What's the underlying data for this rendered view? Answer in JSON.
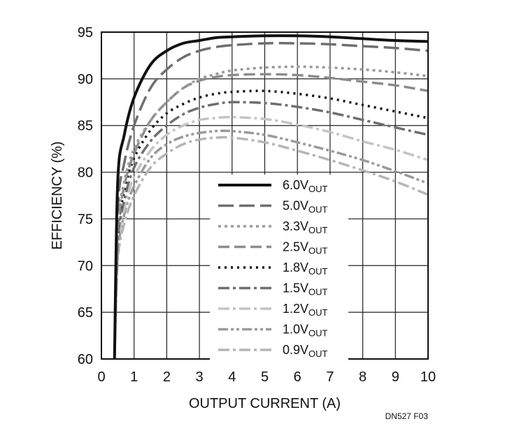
{
  "chart_data": {
    "type": "line",
    "title": "",
    "xlabel": "OUTPUT CURRENT (A)",
    "ylabel": "EFFICIENCY (%)",
    "xlim": [
      0,
      10
    ],
    "ylim": [
      60,
      95
    ],
    "x_ticks": [
      0,
      1,
      2,
      3,
      4,
      5,
      6,
      7,
      8,
      9,
      10
    ],
    "y_ticks": [
      60,
      65,
      70,
      75,
      80,
      85,
      90,
      95
    ],
    "grid": true,
    "legend_position": "center-bottom",
    "series": [
      {
        "name": "6.0V",
        "name_sub": "OUT",
        "color": "#111111",
        "dash": "solid",
        "points": [
          [
            0.4,
            60
          ],
          [
            0.5,
            79
          ],
          [
            0.7,
            84
          ],
          [
            1,
            88
          ],
          [
            1.5,
            91.5
          ],
          [
            2,
            93
          ],
          [
            2.5,
            93.8
          ],
          [
            3,
            94.1
          ],
          [
            3.5,
            94.4
          ],
          [
            4,
            94.5
          ],
          [
            5,
            94.6
          ],
          [
            6,
            94.6
          ],
          [
            7,
            94.5
          ],
          [
            8,
            94.3
          ],
          [
            9,
            94.1
          ],
          [
            10,
            94
          ]
        ]
      },
      {
        "name": "5.0V",
        "name_sub": "OUT",
        "color": "#6f6f6f",
        "dash": "long-dash",
        "points": [
          [
            0.4,
            60
          ],
          [
            0.5,
            76
          ],
          [
            0.7,
            81
          ],
          [
            1,
            85
          ],
          [
            1.5,
            89
          ],
          [
            2,
            91
          ],
          [
            2.5,
            92.3
          ],
          [
            3,
            93
          ],
          [
            3.5,
            93.4
          ],
          [
            4,
            93.6
          ],
          [
            5,
            93.8
          ],
          [
            6,
            93.8
          ],
          [
            7,
            93.7
          ],
          [
            8,
            93.5
          ],
          [
            9,
            93.3
          ],
          [
            10,
            93
          ]
        ]
      },
      {
        "name": "3.3V",
        "name_sub": "OUT",
        "color": "#9a9a9a",
        "dash": "dotted",
        "points": [
          [
            0.4,
            60
          ],
          [
            0.5,
            74
          ],
          [
            0.7,
            79
          ],
          [
            1,
            82.5
          ],
          [
            1.5,
            85.5
          ],
          [
            2,
            87.5
          ],
          [
            2.5,
            89
          ],
          [
            3,
            90
          ],
          [
            3.5,
            90.5
          ],
          [
            4,
            90.9
          ],
          [
            5,
            91.2
          ],
          [
            6,
            91.3
          ],
          [
            7,
            91.2
          ],
          [
            8,
            91
          ],
          [
            9,
            90.7
          ],
          [
            10,
            90.3
          ]
        ]
      },
      {
        "name": "2.5V",
        "name_sub": "OUT",
        "color": "#8c8c8c",
        "dash": "dash",
        "points": [
          [
            0.4,
            60
          ],
          [
            0.5,
            73.5
          ],
          [
            0.7,
            78.5
          ],
          [
            1,
            82
          ],
          [
            1.5,
            85.5
          ],
          [
            2,
            87.5
          ],
          [
            2.5,
            89
          ],
          [
            3,
            89.8
          ],
          [
            3.5,
            90.2
          ],
          [
            4,
            90.4
          ],
          [
            5,
            90.5
          ],
          [
            6,
            90.4
          ],
          [
            7,
            90.1
          ],
          [
            8,
            89.7
          ],
          [
            9,
            89.3
          ],
          [
            10,
            88.7
          ]
        ]
      },
      {
        "name": "1.8V",
        "name_sub": "OUT",
        "color": "#111111",
        "dash": "dot",
        "points": [
          [
            0.4,
            60
          ],
          [
            0.5,
            73
          ],
          [
            0.7,
            78
          ],
          [
            1,
            81.5
          ],
          [
            1.5,
            84.5
          ],
          [
            2,
            86.3
          ],
          [
            2.5,
            87.3
          ],
          [
            3,
            88
          ],
          [
            3.5,
            88.4
          ],
          [
            4,
            88.6
          ],
          [
            5,
            88.7
          ],
          [
            6,
            88.4
          ],
          [
            7,
            87.9
          ],
          [
            8,
            87.2
          ],
          [
            9,
            86.5
          ],
          [
            10,
            85.8
          ]
        ]
      },
      {
        "name": "1.5V",
        "name_sub": "OUT",
        "color": "#6f6f6f",
        "dash": "dash-dot",
        "points": [
          [
            0.4,
            60
          ],
          [
            0.5,
            72.5
          ],
          [
            0.7,
            77
          ],
          [
            1,
            80.5
          ],
          [
            1.5,
            83.3
          ],
          [
            2,
            85
          ],
          [
            2.5,
            86.2
          ],
          [
            3,
            86.9
          ],
          [
            3.5,
            87.3
          ],
          [
            4,
            87.5
          ],
          [
            5,
            87.4
          ],
          [
            6,
            87
          ],
          [
            7,
            86.4
          ],
          [
            8,
            85.6
          ],
          [
            9,
            84.8
          ],
          [
            10,
            84
          ]
        ]
      },
      {
        "name": "1.2V",
        "name_sub": "OUT",
        "color": "#c4c4c4",
        "dash": "dash-dot",
        "points": [
          [
            0.4,
            60
          ],
          [
            0.5,
            71.5
          ],
          [
            0.7,
            76
          ],
          [
            1,
            79.5
          ],
          [
            1.5,
            82.3
          ],
          [
            2,
            84
          ],
          [
            2.5,
            85
          ],
          [
            3,
            85.6
          ],
          [
            3.5,
            85.8
          ],
          [
            4,
            85.9
          ],
          [
            5,
            85.7
          ],
          [
            6,
            85.1
          ],
          [
            7,
            84.3
          ],
          [
            8,
            83.3
          ],
          [
            9,
            82.4
          ],
          [
            10,
            81.3
          ]
        ]
      },
      {
        "name": "1.0V",
        "name_sub": "OUT",
        "color": "#9a9a9a",
        "dash": "dash-dot-dot",
        "points": [
          [
            0.4,
            60
          ],
          [
            0.5,
            71
          ],
          [
            0.7,
            75.5
          ],
          [
            1,
            78.5
          ],
          [
            1.5,
            81.5
          ],
          [
            2,
            83
          ],
          [
            2.5,
            83.8
          ],
          [
            3,
            84.2
          ],
          [
            3.5,
            84.4
          ],
          [
            4,
            84.4
          ],
          [
            5,
            84
          ],
          [
            6,
            83.2
          ],
          [
            7,
            82.3
          ],
          [
            8,
            81.3
          ],
          [
            9,
            80.1
          ],
          [
            10,
            78.8
          ]
        ]
      },
      {
        "name": "0.9V",
        "name_sub": "OUT",
        "color": "#b5b5b5",
        "dash": "dash-dot",
        "points": [
          [
            0.4,
            60
          ],
          [
            0.5,
            70.5
          ],
          [
            0.7,
            74.5
          ],
          [
            1,
            77.5
          ],
          [
            1.5,
            80.5
          ],
          [
            2,
            82
          ],
          [
            2.5,
            83
          ],
          [
            3,
            83.5
          ],
          [
            3.5,
            83.7
          ],
          [
            4,
            83.7
          ],
          [
            5,
            83.2
          ],
          [
            6,
            82.3
          ],
          [
            7,
            81.3
          ],
          [
            8,
            80.2
          ],
          [
            9,
            79
          ],
          [
            10,
            77.6
          ]
        ]
      }
    ]
  },
  "figure_id": "DN527 F03"
}
